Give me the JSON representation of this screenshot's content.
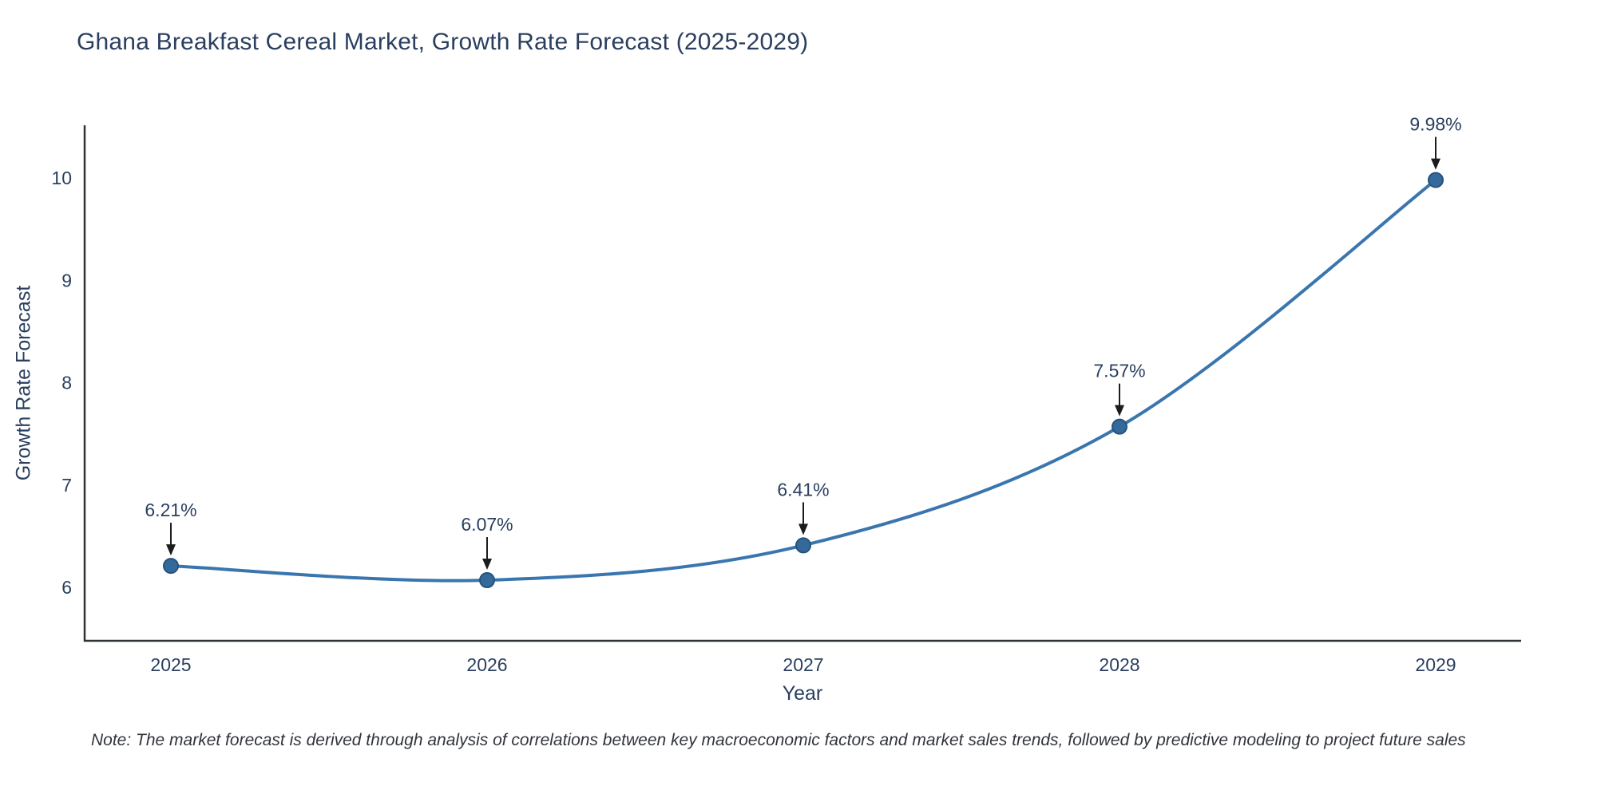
{
  "chart_data": {
    "type": "line",
    "title": "Ghana Breakfast Cereal Market, Growth Rate Forecast (2025-2029)",
    "xlabel": "Year",
    "ylabel": "Growth Rate Forecast",
    "x": [
      2025,
      2026,
      2027,
      2028,
      2029
    ],
    "series": [
      {
        "name": "Growth Rate Forecast",
        "values": [
          6.21,
          6.07,
          6.41,
          7.57,
          9.98
        ]
      }
    ],
    "point_labels": [
      "6.21%",
      "6.07%",
      "6.41%",
      "7.57%",
      "9.98%"
    ],
    "yticks": [
      6,
      7,
      8,
      9,
      10
    ],
    "ylim": [
      5.5,
      10.5
    ],
    "grid": false,
    "legend": "none",
    "line_style": "smooth-spline-with-markers",
    "annotations": "value labels with downward arrows above each point",
    "note": "Note: The market forecast is derived through analysis of correlations between key macroeconomic factors and market sales trends, followed by predictive modeling to project future sales",
    "colors": {
      "line": "#3a76ae",
      "marker": "#34699c",
      "marker_edge": "#27537a",
      "axis": "#2e3338",
      "tick_text": "#2a3f5f",
      "annotation_text": "#2a3f5f",
      "arrow": "#1c1c1c",
      "title_text": "#2a3f5f",
      "background": "#ffffff"
    }
  }
}
